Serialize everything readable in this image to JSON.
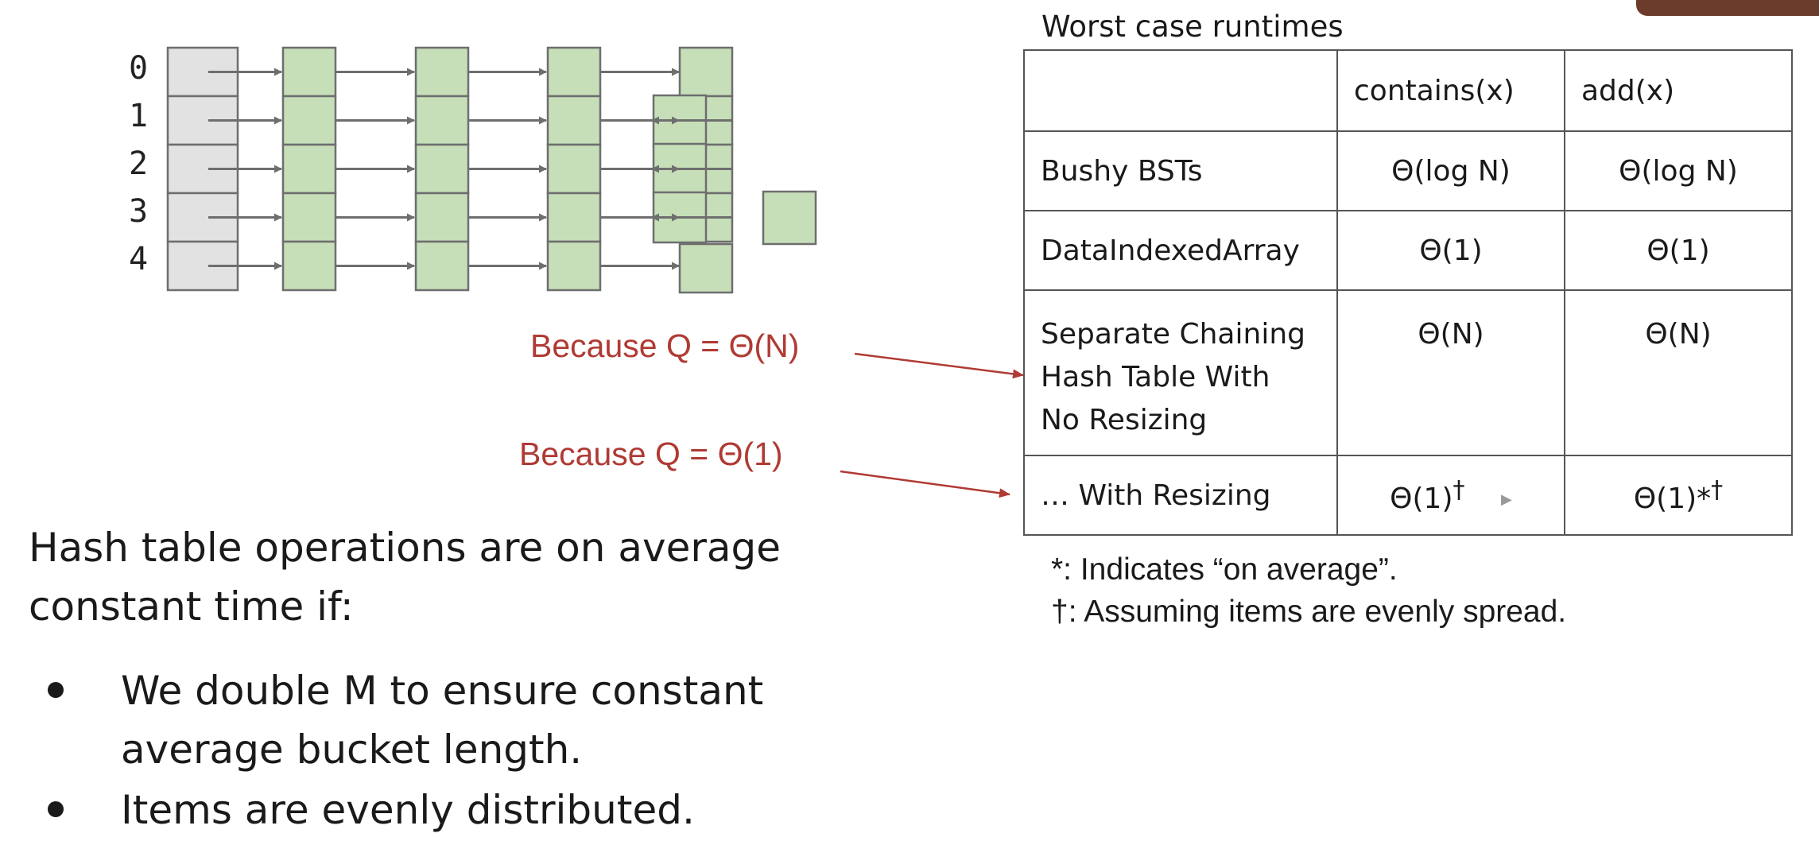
{
  "diagram": {
    "bucket_labels": [
      "0",
      "1",
      "2",
      "3",
      "4"
    ],
    "colors": {
      "bucket": "#e2e2e2",
      "node": "#c6dfb9",
      "border": "#6e6e6e",
      "arrow": "#6e6e6e"
    }
  },
  "annotations": {
    "no_resize": "Because Q = Θ(N)",
    "resize": "Because Q = Θ(1)",
    "color": "#b03a34"
  },
  "summary": {
    "intro": "Hash table operations are on average constant time if:",
    "bullets": [
      "We double M to ensure constant average bucket length.",
      "Items are evenly distributed."
    ]
  },
  "table": {
    "title": "Worst case runtimes",
    "headers": [
      "",
      "contains(x)",
      "add(x)"
    ],
    "rows": [
      {
        "name": "Bushy BSTs",
        "contains": "Θ(log N)",
        "add": "Θ(log N)"
      },
      {
        "name": "DataIndexedArray",
        "contains": "Θ(1)",
        "add": "Θ(1)"
      },
      {
        "name_lines": [
          "Separate Chaining",
          "Hash Table With",
          "No Resizing"
        ],
        "contains": "Θ(N)",
        "add": "Θ(N)"
      },
      {
        "name": "… With Resizing",
        "contains": "Θ(1)",
        "contains_sup": "†",
        "add": "Θ(1)*",
        "add_sup": "†"
      }
    ]
  },
  "footnotes": [
    "*: Indicates “on average”.",
    "†: Assuming items are evenly spread."
  ],
  "icons": {
    "cursor": "pointer-cursor-icon",
    "bullet": "bullet-dot-icon",
    "arrow": "arrow-right-icon"
  }
}
